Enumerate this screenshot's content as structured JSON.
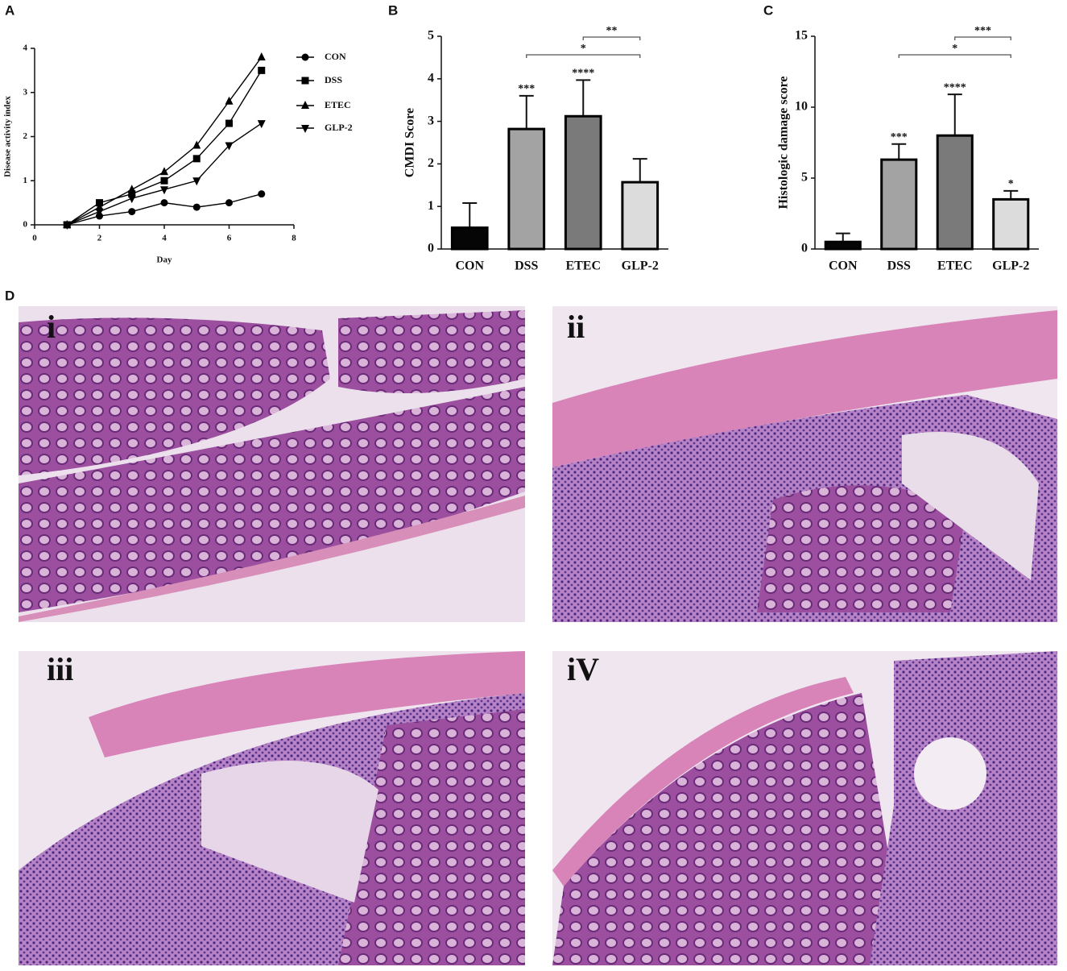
{
  "chart_data": [
    {
      "type": "line",
      "xlabel": "Day",
      "ylabel": "Disease activity index",
      "x": [
        1,
        2,
        3,
        4,
        5,
        6,
        7
      ],
      "xlim": [
        0,
        8
      ],
      "xticks": [
        0,
        2,
        4,
        6,
        8
      ],
      "ylim": [
        0,
        4
      ],
      "yticks": [
        0,
        1,
        2,
        3,
        4
      ],
      "legend": "right",
      "series": [
        {
          "name": "CON",
          "color": "#000000",
          "marker": "circle",
          "values": [
            0,
            0.2,
            0.3,
            0.5,
            0.4,
            0.5,
            0.7
          ]
        },
        {
          "name": "DSS",
          "color": "#000000",
          "marker": "square",
          "values": [
            0,
            0.5,
            0.7,
            1.0,
            1.5,
            2.3,
            3.5
          ]
        },
        {
          "name": "ETEC",
          "color": "#000000",
          "marker": "triangle",
          "values": [
            0,
            0.4,
            0.8,
            1.2,
            1.8,
            2.8,
            3.8
          ]
        },
        {
          "name": "GLP-2",
          "color": "#000000",
          "marker": "triangle-down",
          "values": [
            0,
            0.3,
            0.6,
            0.8,
            1.0,
            1.8,
            2.3
          ]
        }
      ]
    },
    {
      "type": "bar",
      "ylabel": "CMDI Score",
      "categories": [
        "CON",
        "DSS",
        "ETEC",
        "GLP-2"
      ],
      "values": [
        0.5,
        2.82,
        3.12,
        1.57
      ],
      "errors": [
        0.58,
        0.78,
        0.85,
        0.55
      ],
      "colors": [
        "#050505",
        "#a3a3a3",
        "#7a7a7a",
        "#dcdcdc"
      ],
      "ylim": [
        0,
        5
      ],
      "yticks": [
        0,
        1,
        2,
        3,
        4,
        5
      ],
      "significance": [
        null,
        "***",
        "****",
        null
      ],
      "brackets": [
        {
          "from": 1,
          "to": 3,
          "label": "*"
        },
        {
          "from": 2,
          "to": 3,
          "label": "**"
        }
      ]
    },
    {
      "type": "bar",
      "ylabel": "Histologic damage score",
      "categories": [
        "CON",
        "DSS",
        "ETEC",
        "GLP-2"
      ],
      "values": [
        0.5,
        6.3,
        8.0,
        3.5
      ],
      "errors": [
        0.6,
        1.1,
        2.9,
        0.6
      ],
      "colors": [
        "#050505",
        "#a3a3a3",
        "#7a7a7a",
        "#dcdcdc"
      ],
      "ylim": [
        0,
        15
      ],
      "yticks": [
        0,
        5,
        10,
        15
      ],
      "significance": [
        null,
        "***",
        "****",
        "*"
      ],
      "brackets": [
        {
          "from": 1,
          "to": 3,
          "label": "*"
        },
        {
          "from": 2,
          "to": 3,
          "label": "***"
        }
      ]
    }
  ],
  "panel_labels": [
    "A",
    "B",
    "C",
    "D"
  ],
  "images": [
    {
      "label": "i"
    },
    {
      "label": "ii"
    },
    {
      "label": "iii"
    },
    {
      "label": "iV"
    }
  ]
}
